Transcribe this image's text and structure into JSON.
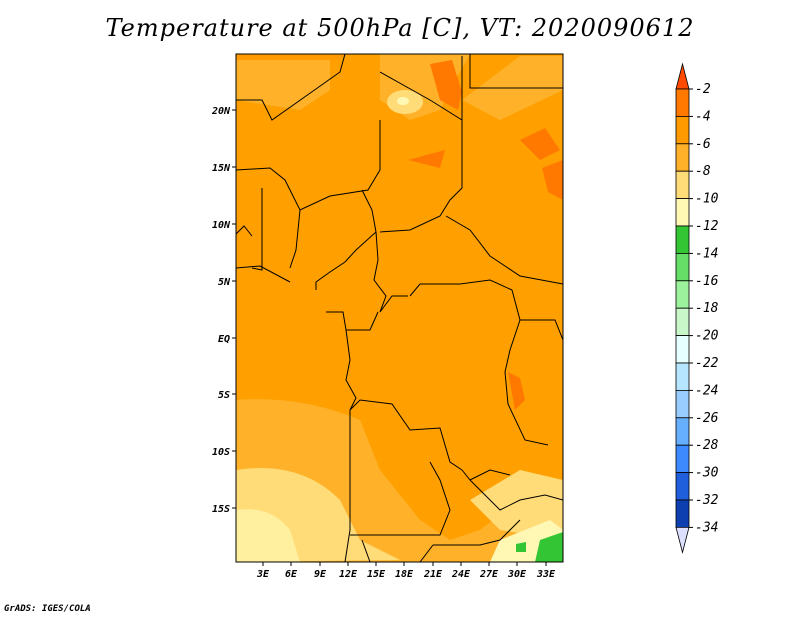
{
  "title": "Temperature at 500hPa [C], VT: 2020090612",
  "credit": "GrADS: IGES/COLA",
  "map": {
    "lat_labels": [
      "20N",
      "15N",
      "10N",
      "5N",
      "EQ",
      "5S",
      "10S",
      "15S"
    ],
    "lon_labels": [
      "3E",
      "6E",
      "9E",
      "12E",
      "15E",
      "18E",
      "21E",
      "24E",
      "27E",
      "30E",
      "33E"
    ]
  },
  "colorbar": {
    "labels": [
      "-2",
      "-4",
      "-6",
      "-8",
      "-10",
      "-12",
      "-14",
      "-16",
      "-18",
      "-20",
      "-22",
      "-24",
      "-26",
      "-28",
      "-30",
      "-32",
      "-34"
    ],
    "colors": [
      "#ff7800",
      "#ff9a00",
      "#ffb229",
      "#ffdc78",
      "#fff8b5",
      "#33c533",
      "#66dd66",
      "#9cf29c",
      "#c9f7c9",
      "#e6ffff",
      "#b5e5ff",
      "#99ccff",
      "#66afff",
      "#3d8aff",
      "#1f5fdb",
      "#0d3fb0",
      "#09135f"
    ],
    "top_color": "#ff4a00",
    "bottom_color": "#dde0ff"
  }
}
